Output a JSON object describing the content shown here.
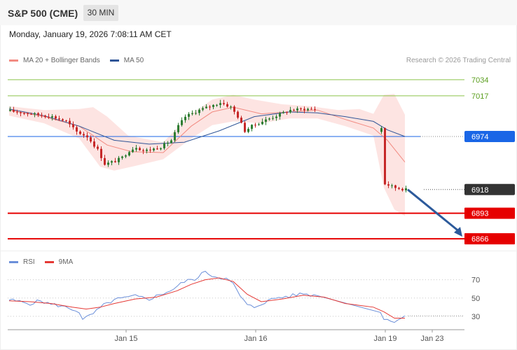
{
  "header": {
    "title": "S&P 500 (CME)",
    "timeframe": "30 MIN"
  },
  "datetime": "Monday, January 19, 2026 7:08:11 AM CET",
  "legend_main": {
    "ma20": "MA 20 + Bollinger Bands",
    "ma50": "MA 50"
  },
  "legend_rsi": {
    "rsi": "RSI",
    "ma9": "9MA"
  },
  "copyright": "Research © 2026 Trading Central",
  "colors": {
    "ma20": "#f28b82",
    "ma50": "#2f5597",
    "bands": "#fde1df",
    "up": "#2e7d32",
    "down": "#c62828",
    "resistance": "#8bc34a",
    "support": "#e60000",
    "pivot": "#1a66e6",
    "last": "#333333",
    "arrow": "#2c5a9b",
    "rsi": "#6b8fd9",
    "rsi_ma": "#e53935"
  },
  "chart_data": [
    {
      "type": "candlestick",
      "ylim": [
        6855,
        7045
      ],
      "x_ticks": [
        "Jan 15",
        "Jan 16",
        "Jan 19",
        "Jan 23"
      ],
      "levels": [
        {
          "value": 7034,
          "label": "7034",
          "kind": "resistance"
        },
        {
          "value": 7017,
          "label": "7017",
          "kind": "resistance"
        },
        {
          "value": 6974,
          "label": "6974",
          "kind": "pivot"
        },
        {
          "value": 6918,
          "label": "6918",
          "kind": "last"
        },
        {
          "value": 6893,
          "label": "6893",
          "kind": "support"
        },
        {
          "value": 6866,
          "label": "6866",
          "kind": "support"
        }
      ],
      "close_path": [
        [
          0,
          7001
        ],
        [
          6,
          6998
        ],
        [
          12,
          6995
        ],
        [
          16,
          6990
        ],
        [
          19,
          6979
        ],
        [
          22,
          6974
        ],
        [
          25,
          6960
        ],
        [
          27,
          6945
        ],
        [
          30,
          6948
        ],
        [
          32,
          6952
        ],
        [
          34,
          6959
        ],
        [
          36,
          6963
        ],
        [
          38,
          6959
        ],
        [
          40,
          6960
        ],
        [
          43,
          6963
        ],
        [
          46,
          6970
        ],
        [
          48,
          6985
        ],
        [
          50,
          6995
        ],
        [
          54,
          7002
        ],
        [
          58,
          7007
        ],
        [
          60,
          7010
        ],
        [
          63,
          7005
        ],
        [
          65,
          6995
        ],
        [
          67,
          6980
        ],
        [
          69,
          6985
        ],
        [
          72,
          6990
        ],
        [
          76,
          6996
        ],
        [
          80,
          7002
        ],
        [
          84,
          7003
        ],
        [
          88,
          7003
        ],
        [
          92,
          7000
        ],
        [
          94,
          6994
        ],
        [
          96,
          6987
        ],
        [
          98,
          6982
        ],
        [
          100,
          6988
        ],
        [
          102,
          6988
        ],
        [
          104,
          6985
        ],
        [
          106,
          6983
        ],
        [
          107,
          6924
        ],
        [
          110,
          6920
        ],
        [
          113,
          6918
        ]
      ],
      "ma20_path": [
        [
          0,
          7002
        ],
        [
          10,
          6995
        ],
        [
          20,
          6985
        ],
        [
          28,
          6965
        ],
        [
          35,
          6958
        ],
        [
          44,
          6957
        ],
        [
          52,
          6985
        ],
        [
          58,
          7000
        ],
        [
          64,
          7005
        ],
        [
          72,
          6998
        ],
        [
          80,
          7000
        ],
        [
          88,
          7002
        ],
        [
          96,
          6992
        ],
        [
          104,
          6983
        ],
        [
          108,
          6970
        ],
        [
          113,
          6947
        ]
      ],
      "ma50_path": [
        [
          0,
          7003
        ],
        [
          10,
          6996
        ],
        [
          20,
          6985
        ],
        [
          30,
          6970
        ],
        [
          40,
          6966
        ],
        [
          50,
          6968
        ],
        [
          60,
          6980
        ],
        [
          70,
          6995
        ],
        [
          80,
          7000
        ],
        [
          88,
          6999
        ],
        [
          96,
          6995
        ],
        [
          104,
          6990
        ],
        [
          108,
          6981
        ],
        [
          113,
          6974
        ]
      ],
      "bb_upper": [
        [
          0,
          7006
        ],
        [
          10,
          7002
        ],
        [
          20,
          7003
        ],
        [
          24,
          7005
        ],
        [
          28,
          6995
        ],
        [
          34,
          6975
        ],
        [
          44,
          6968
        ],
        [
          52,
          6998
        ],
        [
          58,
          7013
        ],
        [
          64,
          7018
        ],
        [
          70,
          7013
        ],
        [
          78,
          7008
        ],
        [
          86,
          7006
        ],
        [
          94,
          7002
        ],
        [
          100,
          7003
        ],
        [
          104,
          6998
        ],
        [
          107,
          7018
        ],
        [
          110,
          7019
        ],
        [
          113,
          6997
        ]
      ],
      "bb_lower": [
        [
          0,
          6996
        ],
        [
          10,
          6988
        ],
        [
          20,
          6972
        ],
        [
          26,
          6942
        ],
        [
          30,
          6938
        ],
        [
          36,
          6943
        ],
        [
          44,
          6950
        ],
        [
          52,
          6972
        ],
        [
          58,
          6986
        ],
        [
          64,
          6990
        ],
        [
          72,
          6988
        ],
        [
          80,
          6993
        ],
        [
          88,
          6993
        ],
        [
          96,
          6985
        ],
        [
          104,
          6975
        ],
        [
          107,
          6920
        ],
        [
          110,
          6897
        ],
        [
          113,
          6890
        ]
      ]
    },
    {
      "type": "line",
      "ylim": [
        20,
        85
      ],
      "y_ticks": [
        70,
        50,
        30
      ],
      "series": [
        {
          "name": "RSI",
          "values": [
            [
              0,
              48
            ],
            [
              3,
              46
            ],
            [
              6,
              44
            ],
            [
              9,
              47
            ],
            [
              12,
              43
            ],
            [
              14,
              42
            ],
            [
              16,
              40
            ],
            [
              18,
              38
            ],
            [
              20,
              35
            ],
            [
              21,
              26
            ],
            [
              24,
              33
            ],
            [
              27,
              42
            ],
            [
              30,
              48
            ],
            [
              33,
              50
            ],
            [
              36,
              52
            ],
            [
              40,
              49
            ],
            [
              44,
              55
            ],
            [
              47,
              60
            ],
            [
              50,
              68
            ],
            [
              52,
              70
            ],
            [
              54,
              72
            ],
            [
              56,
              80
            ],
            [
              58,
              74
            ],
            [
              60,
              73
            ],
            [
              62,
              71
            ],
            [
              64,
              65
            ],
            [
              66,
              52
            ],
            [
              68,
              42
            ],
            [
              70,
              40
            ],
            [
              72,
              44
            ],
            [
              76,
              50
            ],
            [
              80,
              52
            ],
            [
              84,
              55
            ],
            [
              88,
              52
            ],
            [
              92,
              48
            ],
            [
              94,
              44
            ],
            [
              96,
              38
            ],
            [
              98,
              40
            ],
            [
              100,
              44
            ],
            [
              102,
              40
            ],
            [
              104,
              35
            ],
            [
              106,
              36
            ],
            [
              107,
              27
            ],
            [
              110,
              25
            ],
            [
              113,
              30
            ]
          ]
        },
        {
          "name": "9MA",
          "values": [
            [
              0,
              47
            ],
            [
              6,
              46
            ],
            [
              12,
              44
            ],
            [
              18,
              40
            ],
            [
              22,
              38
            ],
            [
              26,
              40
            ],
            [
              30,
              44
            ],
            [
              36,
              49
            ],
            [
              42,
              51
            ],
            [
              48,
              58
            ],
            [
              52,
              65
            ],
            [
              56,
              70
            ],
            [
              60,
              72
            ],
            [
              64,
              68
            ],
            [
              68,
              54
            ],
            [
              72,
              46
            ],
            [
              78,
              49
            ],
            [
              84,
              53
            ],
            [
              90,
              51
            ],
            [
              96,
              44
            ],
            [
              100,
              42
            ],
            [
              104,
              40
            ],
            [
              107,
              35
            ],
            [
              110,
              28
            ],
            [
              113,
              28
            ]
          ]
        }
      ]
    }
  ]
}
